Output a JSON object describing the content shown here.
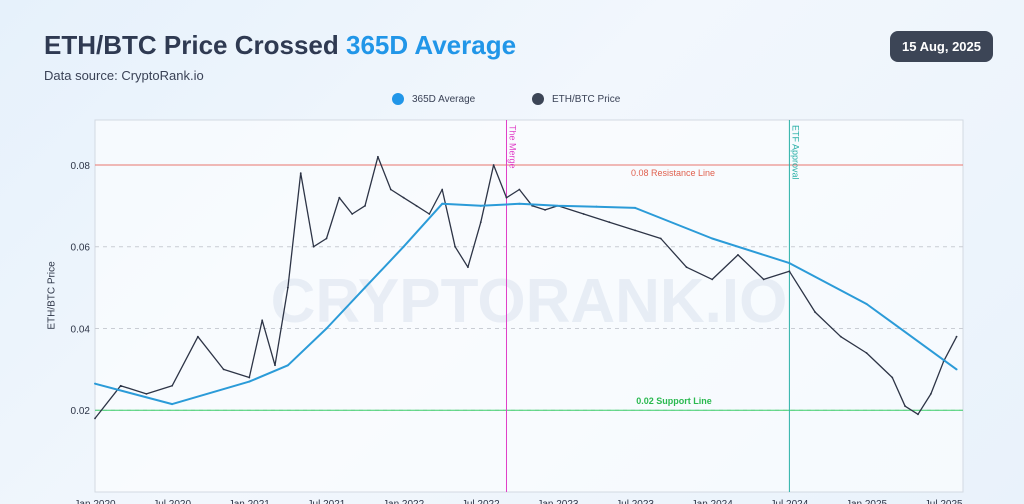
{
  "header": {
    "title_part1": "ETH/BTC Price Crossed ",
    "title_part2": "365D Average",
    "subtitle": "Data source: CryptoRank.io",
    "date_badge": "15 Aug, 2025"
  },
  "watermark": "CRYPTORANK.IO",
  "colors": {
    "accent": "#2196e8",
    "price_line": "#2d3446",
    "average_line": "#2b9bd8",
    "resistance": "#e8756f",
    "support": "#3ccf6a",
    "merge": "#e040c8",
    "etf": "#2ab0a8"
  },
  "chart_data": {
    "type": "line",
    "title": "ETH/BTC Price Crossed 365D Average",
    "ylabel": "ETH/BTC Price",
    "ylim": [
      0.0,
      0.091
    ],
    "yticks": [
      "0.02",
      "0.04",
      "0.06",
      "0.08"
    ],
    "x_tick_labels": [
      "Jan 2020",
      "Jul 2020",
      "Jan 2021",
      "Jul 2021",
      "Jan 2022",
      "Jul 2022",
      "Jan 2023",
      "Jul 2023",
      "Jan 2024",
      "Jul 2024",
      "Jan 2025",
      "Jul 2025"
    ],
    "legend": [
      {
        "name": "365D Average",
        "color": "#2196e8"
      },
      {
        "name": "ETH/BTC Price",
        "color": "#3c4556"
      }
    ],
    "series": [
      {
        "name": "ETH/BTC Price",
        "x": [
          "2020-01",
          "2020-03",
          "2020-05",
          "2020-07",
          "2020-09",
          "2020-11",
          "2021-01",
          "2021-02",
          "2021-03",
          "2021-04",
          "2021-05",
          "2021-06",
          "2021-07",
          "2021-08",
          "2021-09",
          "2021-10",
          "2021-11",
          "2021-12",
          "2022-01",
          "2022-02",
          "2022-03",
          "2022-04",
          "2022-05",
          "2022-06",
          "2022-07",
          "2022-08",
          "2022-09",
          "2022-10",
          "2022-11",
          "2022-12",
          "2023-01",
          "2023-03",
          "2023-05",
          "2023-07",
          "2023-09",
          "2023-11",
          "2024-01",
          "2024-03",
          "2024-05",
          "2024-07",
          "2024-09",
          "2024-11",
          "2025-01",
          "2025-03",
          "2025-04",
          "2025-05",
          "2025-06",
          "2025-07",
          "2025-08"
        ],
        "values": [
          0.018,
          0.026,
          0.024,
          0.026,
          0.038,
          0.03,
          0.028,
          0.042,
          0.031,
          0.05,
          0.078,
          0.06,
          0.062,
          0.072,
          0.068,
          0.07,
          0.082,
          0.074,
          0.072,
          0.07,
          0.068,
          0.074,
          0.06,
          0.055,
          0.066,
          0.08,
          0.072,
          0.074,
          0.07,
          0.069,
          0.07,
          0.068,
          0.066,
          0.064,
          0.062,
          0.055,
          0.052,
          0.058,
          0.052,
          0.054,
          0.044,
          0.038,
          0.034,
          0.028,
          0.021,
          0.019,
          0.024,
          0.032,
          0.038
        ]
      },
      {
        "name": "365D Average",
        "x": [
          "2020-01",
          "2020-07",
          "2021-01",
          "2021-04",
          "2021-07",
          "2021-10",
          "2022-01",
          "2022-04",
          "2022-07",
          "2022-10",
          "2023-01",
          "2023-04",
          "2023-07",
          "2024-01",
          "2024-07",
          "2025-01",
          "2025-08"
        ],
        "values": [
          0.0265,
          0.0215,
          0.027,
          0.031,
          0.04,
          0.05,
          0.06,
          0.0705,
          0.07,
          0.0705,
          0.07,
          0.0698,
          0.0695,
          0.062,
          0.056,
          0.046,
          0.03
        ]
      }
    ],
    "reference_lines": [
      {
        "axis": "y",
        "value": 0.08,
        "label": "0.08 Resistance Line",
        "color": "#e8756f"
      },
      {
        "axis": "y",
        "value": 0.02,
        "label": "0.02 Support Line",
        "color": "#3ccf6a"
      },
      {
        "axis": "x",
        "value": "2022-09",
        "label": "The Merge",
        "color": "#e040c8"
      },
      {
        "axis": "x",
        "value": "2024-07",
        "label": "ETF Approval",
        "color": "#2ab0a8"
      }
    ],
    "grid": "horizontal dashed"
  }
}
